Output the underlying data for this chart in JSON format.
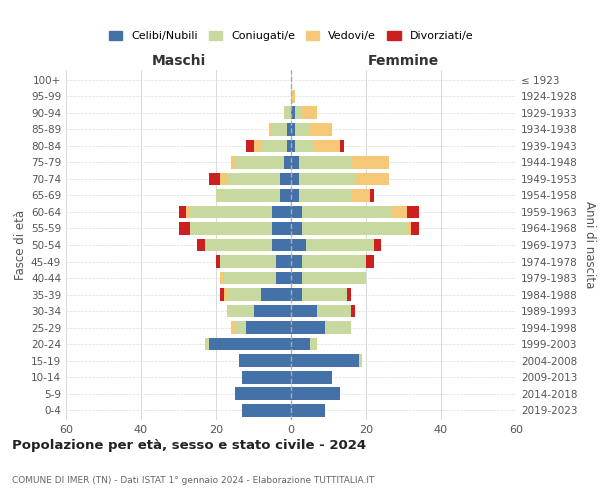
{
  "age_groups": [
    "0-4",
    "5-9",
    "10-14",
    "15-19",
    "20-24",
    "25-29",
    "30-34",
    "35-39",
    "40-44",
    "45-49",
    "50-54",
    "55-59",
    "60-64",
    "65-69",
    "70-74",
    "75-79",
    "80-84",
    "85-89",
    "90-94",
    "95-99",
    "100+"
  ],
  "birth_years": [
    "2019-2023",
    "2014-2018",
    "2009-2013",
    "2004-2008",
    "1999-2003",
    "1994-1998",
    "1989-1993",
    "1984-1988",
    "1979-1983",
    "1974-1978",
    "1969-1973",
    "1964-1968",
    "1959-1963",
    "1954-1958",
    "1949-1953",
    "1944-1948",
    "1939-1943",
    "1934-1938",
    "1929-1933",
    "1924-1928",
    "≤ 1923"
  ],
  "male": {
    "celibi": [
      13,
      15,
      13,
      14,
      22,
      12,
      10,
      8,
      4,
      4,
      5,
      5,
      5,
      3,
      3,
      2,
      1,
      1,
      0,
      0,
      0
    ],
    "coniugati": [
      0,
      0,
      0,
      0,
      1,
      3,
      7,
      9,
      14,
      15,
      18,
      22,
      22,
      17,
      14,
      13,
      7,
      4,
      2,
      0,
      0
    ],
    "vedovi": [
      0,
      0,
      0,
      0,
      0,
      1,
      0,
      1,
      1,
      0,
      0,
      0,
      1,
      0,
      2,
      1,
      2,
      1,
      0,
      0,
      0
    ],
    "divorziati": [
      0,
      0,
      0,
      0,
      0,
      0,
      0,
      1,
      0,
      1,
      2,
      3,
      2,
      0,
      3,
      0,
      2,
      0,
      0,
      0,
      0
    ]
  },
  "female": {
    "nubili": [
      9,
      13,
      11,
      18,
      5,
      9,
      7,
      3,
      3,
      3,
      4,
      3,
      3,
      2,
      2,
      2,
      1,
      1,
      1,
      0,
      0
    ],
    "coniugate": [
      0,
      0,
      0,
      1,
      2,
      7,
      9,
      12,
      17,
      17,
      18,
      28,
      24,
      14,
      15,
      14,
      5,
      4,
      2,
      0,
      0
    ],
    "vedove": [
      0,
      0,
      0,
      0,
      0,
      0,
      0,
      0,
      0,
      0,
      0,
      1,
      4,
      5,
      9,
      10,
      7,
      6,
      4,
      1,
      0
    ],
    "divorziate": [
      0,
      0,
      0,
      0,
      0,
      0,
      1,
      1,
      0,
      2,
      2,
      2,
      3,
      1,
      0,
      0,
      1,
      0,
      0,
      0,
      0
    ]
  },
  "colors": {
    "celibi": "#4472a8",
    "coniugati": "#c8d9a0",
    "vedovi": "#f5c878",
    "divorziati": "#cc2020"
  },
  "xlim": 60,
  "title": "Popolazione per età, sesso e stato civile - 2024",
  "subtitle": "COMUNE DI IMER (TN) - Dati ISTAT 1° gennaio 2024 - Elaborazione TUTTITALIA.IT",
  "ylabel_left": "Fasce di età",
  "ylabel_right": "Anni di nascita",
  "xlabel_left": "Maschi",
  "xlabel_right": "Femmine",
  "legend_labels": [
    "Celibi/Nubili",
    "Coniugati/e",
    "Vedovi/e",
    "Divorziati/e"
  ],
  "background_color": "#ffffff"
}
